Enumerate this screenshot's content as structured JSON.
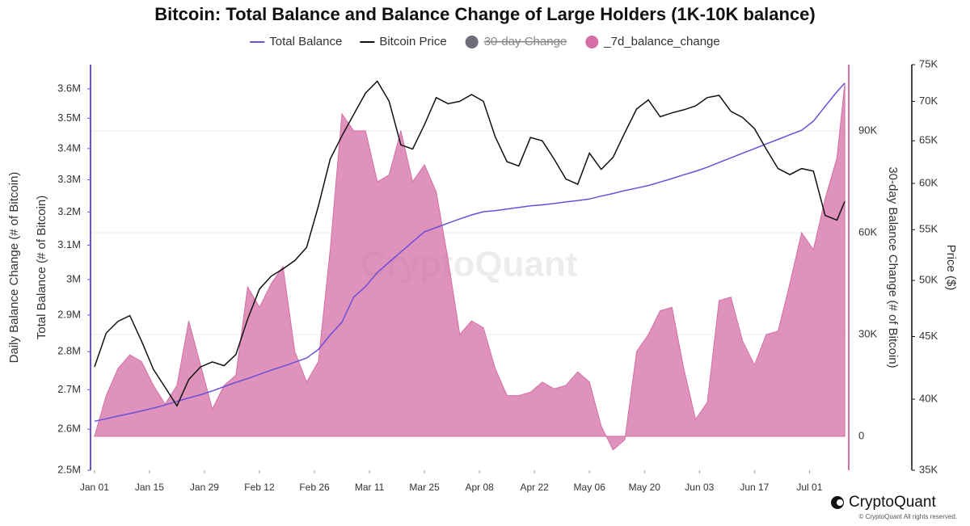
{
  "chart_data": {
    "type": "combo",
    "title": "Bitcoin: Total Balance and Balance Change of Large Holders (1K-10K balance)",
    "y_label": "Total Balance (# of Bitcoin)",
    "y_outer_label": "Daily Balance Change (# of Bitcoin)",
    "y2_label": "30-day Balance Change (# of Bitcoin)",
    "y3_label": "Price ($)",
    "watermark": "CryptoQuant",
    "footer": {
      "brand": "CryptoQuant",
      "copyright": "© CryptoQuant All rights reserved."
    },
    "grid": true,
    "legend": "top",
    "x": [
      0,
      3,
      6,
      9,
      12,
      15,
      18,
      21,
      24,
      27,
      30,
      33,
      36,
      39,
      42,
      45,
      48,
      51,
      54,
      57,
      60,
      63,
      66,
      69,
      72,
      75,
      78,
      81,
      84,
      87,
      90,
      93,
      96,
      99,
      102,
      105,
      108,
      111,
      114,
      117,
      120,
      123,
      126,
      129,
      132,
      135,
      138,
      141,
      144,
      147,
      150,
      153,
      156,
      159,
      162,
      165,
      168,
      171,
      174,
      177,
      180,
      183,
      186,
      189,
      191
    ],
    "xlim": [
      -1,
      192
    ],
    "xticks": [
      {
        "value": 0,
        "label": "Jan 01"
      },
      {
        "value": 14,
        "label": "Jan 15"
      },
      {
        "value": 28,
        "label": "Jan 29"
      },
      {
        "value": 42,
        "label": "Feb 12"
      },
      {
        "value": 56,
        "label": "Feb 26"
      },
      {
        "value": 70,
        "label": "Mar 11"
      },
      {
        "value": 84,
        "label": "Mar 25"
      },
      {
        "value": 98,
        "label": "Apr 08"
      },
      {
        "value": 112,
        "label": "Apr 22"
      },
      {
        "value": 126,
        "label": "May 06"
      },
      {
        "value": 140,
        "label": "May 20"
      },
      {
        "value": 154,
        "label": "Jun 03"
      },
      {
        "value": 168,
        "label": "Jun 17"
      },
      {
        "value": 182,
        "label": "Jul 01"
      }
    ],
    "ylim": [
      2500000,
      3684000
    ],
    "yscale": "log",
    "yticks": [
      {
        "value": 2500000,
        "label": "2.5M"
      },
      {
        "value": 2600000,
        "label": "2.6M"
      },
      {
        "value": 2700000,
        "label": "2.7M"
      },
      {
        "value": 2800000,
        "label": "2.8M"
      },
      {
        "value": 2900000,
        "label": "2.9M"
      },
      {
        "value": 3000000,
        "label": "3M"
      },
      {
        "value": 3100000,
        "label": "3.1M"
      },
      {
        "value": 3200000,
        "label": "3.2M"
      },
      {
        "value": 3300000,
        "label": "3.3M"
      },
      {
        "value": 3400000,
        "label": "3.4M"
      },
      {
        "value": 3500000,
        "label": "3.5M"
      },
      {
        "value": 3600000,
        "label": "3.6M"
      }
    ],
    "y2lim": [
      -10000,
      109500
    ],
    "y2ticks": [
      0,
      {
        "value": 30000,
        "label": "30K"
      },
      {
        "value": 60000,
        "label": "60K"
      },
      {
        "value": 90000,
        "label": "90K"
      }
    ],
    "y3lim": [
      35000,
      75000
    ],
    "y3scale": "log",
    "y3ticks": [
      {
        "value": 35000,
        "label": "35K"
      },
      {
        "value": 40000,
        "label": "40K"
      },
      {
        "value": 45000,
        "label": "45K"
      },
      {
        "value": 50000,
        "label": "50K"
      },
      {
        "value": 55000,
        "label": "55K"
      },
      {
        "value": 60000,
        "label": "60K"
      },
      {
        "value": 65000,
        "label": "65K"
      },
      {
        "value": 70000,
        "label": "70K"
      },
      {
        "value": 75000,
        "label": "75K"
      }
    ],
    "series": [
      {
        "name": "Total Balance",
        "type": "line",
        "color": "#6a4fd8",
        "axis": "y",
        "values": [
          2620000,
          2626000,
          2633000,
          2639000,
          2646000,
          2653000,
          2661000,
          2670000,
          2679000,
          2687000,
          2697000,
          2708000,
          2719000,
          2729000,
          2740000,
          2751000,
          2761000,
          2772000,
          2783000,
          2806000,
          2845000,
          2880000,
          2950000,
          2980000,
          3020000,
          3050000,
          3080000,
          3110000,
          3140000,
          3153000,
          3166000,
          3179000,
          3191000,
          3201000,
          3204000,
          3209000,
          3214000,
          3219000,
          3222000,
          3226000,
          3231000,
          3235000,
          3240000,
          3249000,
          3257000,
          3266000,
          3274000,
          3282000,
          3293000,
          3304000,
          3316000,
          3327000,
          3340000,
          3355000,
          3370000,
          3385000,
          3400000,
          3415000,
          3430000,
          3445000,
          3460000,
          3490000,
          3540000,
          3590000,
          3620000
        ]
      },
      {
        "name": "Bitcoin Price",
        "type": "line",
        "color": "#111111",
        "axis": "y3",
        "values": [
          42500,
          45300,
          46300,
          46800,
          44600,
          42300,
          40900,
          39500,
          41500,
          42500,
          42900,
          42600,
          43500,
          46500,
          49200,
          50400,
          51100,
          51900,
          53200,
          57500,
          62800,
          65600,
          68300,
          71100,
          72700,
          70000,
          64500,
          64000,
          67000,
          70500,
          69700,
          70000,
          70900,
          70000,
          65500,
          62500,
          62000,
          65400,
          65000,
          62800,
          60500,
          59900,
          63500,
          61600,
          63000,
          66000,
          69000,
          70200,
          68000,
          68500,
          68900,
          69400,
          70500,
          70800,
          68700,
          67900,
          66500,
          64000,
          61700,
          61000,
          61700,
          61400,
          56500,
          56000,
          58000
        ]
      },
      {
        "name": "30-day Change",
        "type": "area",
        "color": "#6e6e78",
        "axis": "y2",
        "hidden": true
      },
      {
        "name": "_7d_balance_change",
        "type": "area",
        "color": "#d46fa5",
        "axis": "y2",
        "values": [
          0,
          12000,
          20000,
          24000,
          22000,
          15000,
          9500,
          15000,
          34000,
          21000,
          8000,
          15000,
          18000,
          44000,
          38000,
          45000,
          50000,
          25000,
          16000,
          22000,
          55000,
          95000,
          90000,
          90000,
          75000,
          77000,
          90000,
          75000,
          80000,
          72000,
          52000,
          30000,
          34000,
          32000,
          20000,
          12000,
          12000,
          13000,
          16000,
          14000,
          15000,
          19000,
          16000,
          3000,
          -4000,
          -1000,
          25000,
          30000,
          37000,
          38000,
          20000,
          5000,
          10000,
          40000,
          41000,
          28000,
          21000,
          30000,
          31000,
          45000,
          60000,
          55000,
          70000,
          82000,
          104000
        ]
      }
    ]
  }
}
